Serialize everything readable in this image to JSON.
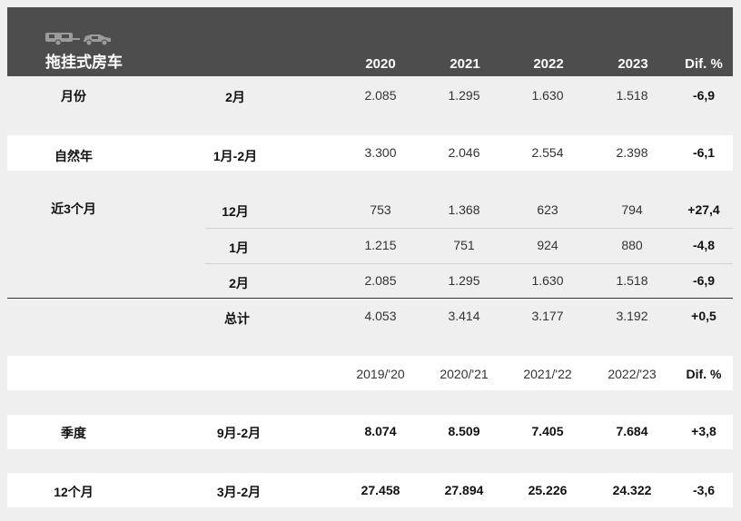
{
  "header": {
    "title": "拖挂式房车",
    "columns": [
      "2020",
      "2021",
      "2022",
      "2023",
      "Dif. %"
    ]
  },
  "rows": {
    "month": {
      "label": "月份",
      "period": "2月",
      "values": [
        "2.085",
        "1.295",
        "1.630",
        "1.518",
        "-6,9"
      ]
    },
    "ytd": {
      "label": "自然年",
      "period": "1月-2月",
      "values": [
        "3.300",
        "2.046",
        "2.554",
        "2.398",
        "-6,1"
      ]
    },
    "last3_dec": {
      "label": "近3个月",
      "period": "12月",
      "values": [
        "753",
        "1.368",
        "623",
        "794",
        "+27,4"
      ]
    },
    "last3_jan": {
      "period": "1月",
      "values": [
        "1.215",
        "751",
        "924",
        "880",
        "-4,8"
      ]
    },
    "last3_feb": {
      "period": "2月",
      "values": [
        "2.085",
        "1.295",
        "1.630",
        "1.518",
        "-6,9"
      ]
    },
    "total": {
      "period": "总计",
      "values": [
        "4.053",
        "3.414",
        "3.177",
        "3.192",
        "+0,5"
      ]
    }
  },
  "season_header": {
    "columns": [
      "2019/'20",
      "2020/'21",
      "2021/'22",
      "2022/'23",
      "Dif. %"
    ]
  },
  "season_rows": {
    "season": {
      "label": "季度",
      "period": "9月-2月",
      "values": [
        "8.074",
        "8.509",
        "7.405",
        "7.684",
        "+3,8"
      ]
    },
    "twelve": {
      "label": "12个月",
      "period": "3月-2月",
      "values": [
        "27.458",
        "27.894",
        "25.226",
        "24.322",
        "-3,6"
      ]
    }
  },
  "icons": {
    "trailer": "caravan-icon",
    "car": "car-icon",
    "color": "#9b9b9b"
  }
}
